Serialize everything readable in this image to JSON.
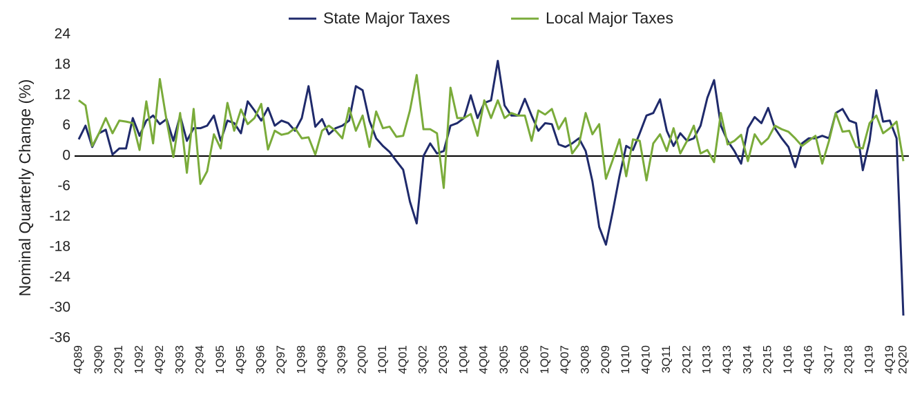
{
  "chart_data": {
    "type": "line",
    "y_label": "Nominal Quarterly Change (%)",
    "categories": [
      "4Q89",
      null,
      null,
      "3Q90",
      null,
      null,
      "2Q91",
      null,
      null,
      "1Q92",
      null,
      null,
      "4Q92",
      null,
      null,
      "3Q93",
      null,
      null,
      "2Q94",
      null,
      null,
      "1Q95",
      null,
      null,
      "4Q95",
      null,
      null,
      "3Q96",
      null,
      null,
      "2Q97",
      null,
      null,
      "1Q98",
      null,
      null,
      "4Q98",
      null,
      null,
      "3Q99",
      null,
      null,
      "2Q00",
      null,
      null,
      "1Q01",
      null,
      null,
      "4Q01",
      null,
      null,
      "3Q02",
      null,
      null,
      "2Q03",
      null,
      null,
      "1Q04",
      null,
      null,
      "4Q04",
      null,
      null,
      "3Q05",
      null,
      null,
      "2Q06",
      null,
      null,
      "1Q07",
      null,
      null,
      "4Q07",
      null,
      null,
      "3Q08",
      null,
      null,
      "2Q09",
      null,
      null,
      "1Q10",
      null,
      null,
      "4Q10",
      null,
      null,
      "3Q11",
      null,
      null,
      "2Q12",
      null,
      null,
      "1Q13",
      null,
      null,
      "4Q13",
      null,
      null,
      "3Q14",
      null,
      null,
      "2Q15",
      null,
      null,
      "1Q16",
      null,
      null,
      "4Q16",
      null,
      null,
      "3Q17",
      null,
      null,
      "2Q18",
      null,
      null,
      "1Q19",
      null,
      null,
      "4Q19",
      null,
      "2Q20"
    ],
    "series": [
      {
        "name": "State Major Taxes",
        "color": "#1f2a6b",
        "values": [
          3.3,
          6,
          1.8,
          4.5,
          5.2,
          0.3,
          1.5,
          1.5,
          7.5,
          4,
          7,
          8,
          6.3,
          7.3,
          3,
          8,
          3,
          5.5,
          5.5,
          6,
          8,
          3,
          7,
          6.5,
          4.5,
          10.8,
          9,
          7,
          9.5,
          6,
          7,
          6.5,
          5,
          7.5,
          13.8,
          5.8,
          7.3,
          4.3,
          5.5,
          6,
          7,
          13.8,
          13,
          7,
          3.5,
          2,
          0.8,
          -1,
          -2.7,
          -9,
          -13.3,
          0,
          2.5,
          0.5,
          1,
          6,
          6.5,
          7.5,
          12,
          7.5,
          10.5,
          11,
          18.8,
          10,
          8,
          8,
          11.3,
          8,
          5,
          6.5,
          6.3,
          2.3,
          1.8,
          2.5,
          3.5,
          1,
          -5,
          -14,
          -17.5,
          -11,
          -4,
          2,
          1.2,
          4.5,
          8,
          8.5,
          11.2,
          5,
          2,
          4.5,
          3,
          3.5,
          6,
          11.5,
          15,
          6,
          3,
          1,
          -1.5,
          5.5,
          7.7,
          6.5,
          9.5,
          5.5,
          3.5,
          1.8,
          -2.2,
          2.5,
          3.5,
          3.5,
          4,
          3.5,
          8.5,
          9.3,
          7,
          6.5,
          -2.8,
          3,
          13,
          6.8,
          7,
          3.5,
          -31.5
        ]
      },
      {
        "name": "Local Major Taxes",
        "color": "#7aab3a",
        "values": [
          11,
          10,
          2,
          4.5,
          7.5,
          4.5,
          7,
          6.8,
          6.5,
          1.2,
          10.8,
          2.5,
          15.2,
          7,
          -0.2,
          8.5,
          -3.3,
          9.3,
          -5.5,
          -3,
          4.3,
          1.5,
          10.5,
          5,
          9.2,
          6.3,
          7.5,
          10.3,
          1.3,
          5,
          4.2,
          4.5,
          5.5,
          3.5,
          3.7,
          0.3,
          5,
          6,
          5,
          3.5,
          9.5,
          5,
          8,
          1.8,
          8.8,
          5.5,
          5.8,
          3.8,
          4,
          9,
          16,
          5.3,
          5.3,
          4.5,
          -6.3,
          13.5,
          7.5,
          7.5,
          8.3,
          4,
          11,
          7.5,
          11,
          7.5,
          8.5,
          8,
          8,
          3,
          9,
          8.2,
          9.3,
          5.3,
          7.5,
          0.5,
          2.3,
          8.5,
          4.3,
          6.3,
          -4.5,
          -0.8,
          3.3,
          -4,
          3.3,
          3,
          -4.8,
          2.5,
          4.3,
          1,
          5.5,
          0.5,
          3,
          6,
          0.5,
          1.2,
          -1.2,
          8.5,
          2.3,
          3,
          4.2,
          -1,
          4.3,
          2.3,
          3.5,
          6,
          5.3,
          4.8,
          3.5,
          2,
          3,
          4,
          -1.5,
          3,
          8.5,
          4.8,
          5,
          1.8,
          1.5,
          6.5,
          8,
          4.5,
          5.5,
          6.8,
          -1
        ]
      }
    ],
    "ylim": [
      -36,
      24
    ],
    "yticks": [
      24,
      18,
      12,
      6,
      0,
      -6,
      -12,
      -18,
      -24,
      -30,
      -36
    ],
    "zero_line": true,
    "legend": "top"
  }
}
